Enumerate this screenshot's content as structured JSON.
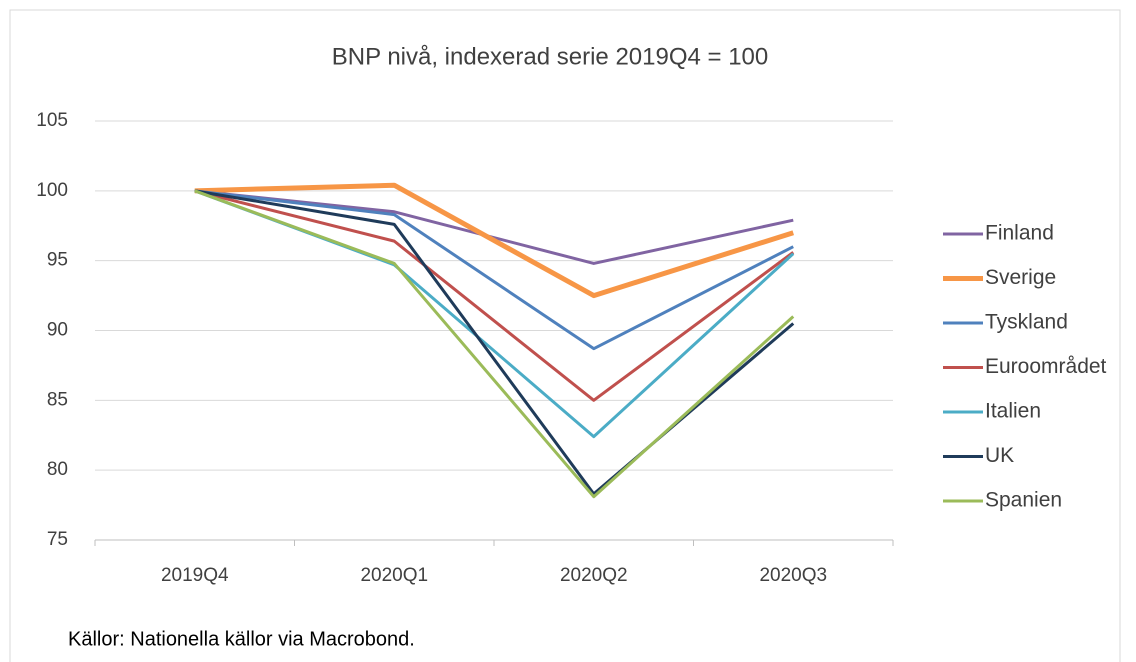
{
  "chart_data": {
    "type": "line",
    "title": "BNP nivå, indexerad serie 2019Q4 = 100",
    "categories": [
      "2019Q4",
      "2020Q1",
      "2020Q2",
      "2020Q3"
    ],
    "series": [
      {
        "name": "Finland",
        "color": "#8064a2",
        "values": [
          100,
          98.5,
          94.8,
          97.9
        ]
      },
      {
        "name": "Sverige",
        "color": "#f79646",
        "values": [
          100,
          100.4,
          92.5,
          97.0
        ]
      },
      {
        "name": "Tyskland",
        "color": "#4f81bd",
        "values": [
          100,
          98.3,
          88.7,
          96.0
        ]
      },
      {
        "name": "Euroområdet",
        "color": "#c0504d",
        "values": [
          100,
          96.4,
          85.0,
          95.6
        ]
      },
      {
        "name": "Italien",
        "color": "#4bacc6",
        "values": [
          100,
          94.7,
          82.4,
          95.5
        ]
      },
      {
        "name": "UK",
        "color": "#1f3b5a",
        "values": [
          100,
          97.6,
          78.3,
          90.5
        ]
      },
      {
        "name": "Spanien",
        "color": "#9bbb59",
        "values": [
          100,
          94.8,
          78.1,
          91.0
        ]
      }
    ],
    "ylim": [
      75,
      105
    ],
    "yticks": [
      75,
      80,
      85,
      90,
      95,
      100,
      105
    ],
    "grid": true,
    "legend": "right",
    "source": "Källor: Nationella källor via Macrobond."
  }
}
